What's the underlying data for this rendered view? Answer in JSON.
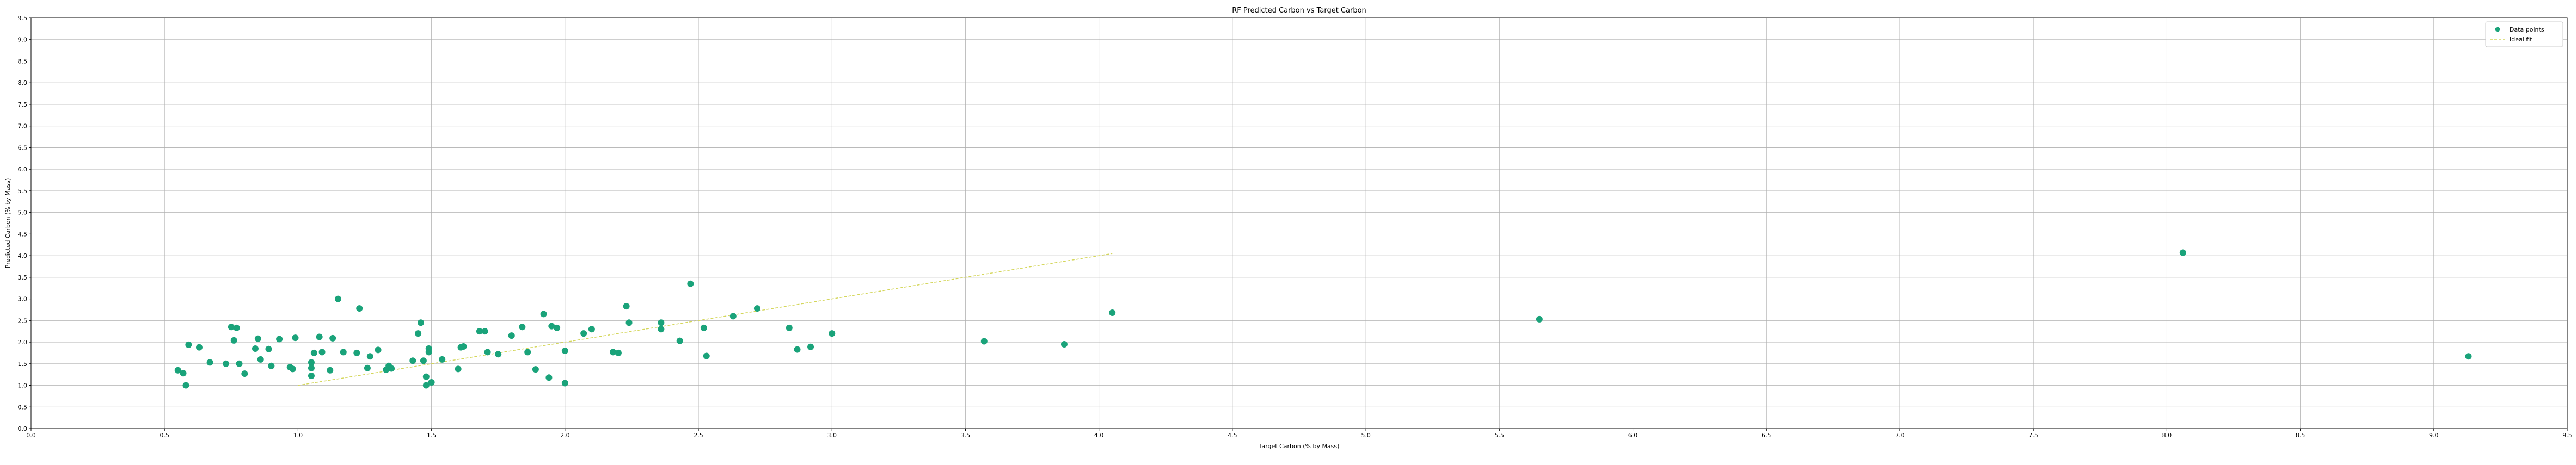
{
  "chart_data": {
    "type": "scatter",
    "title": "RF Predicted Carbon vs Target Carbon",
    "xlabel": "Target Carbon (% by Mass)",
    "ylabel": "Predicted Carbon (% by Mass)",
    "xlim": [
      0.0,
      9.5
    ],
    "ylim": [
      0.0,
      9.5
    ],
    "x_ticks": [
      "0.0",
      "0.5",
      "1.0",
      "1.5",
      "2.0",
      "2.5",
      "3.0",
      "3.5",
      "4.0",
      "4.5",
      "5.0",
      "5.5",
      "6.0",
      "6.5",
      "7.0",
      "7.5",
      "8.0",
      "8.5",
      "9.0",
      "9.5"
    ],
    "y_ticks": [
      "0.0",
      "0.5",
      "1.0",
      "1.5",
      "2.0",
      "2.5",
      "3.0",
      "3.5",
      "4.0",
      "4.5",
      "5.0",
      "5.5",
      "6.0",
      "6.5",
      "7.0",
      "7.5",
      "8.0",
      "8.5",
      "9.0",
      "9.5"
    ],
    "grid": true,
    "legend_position": "top-right",
    "colors": {
      "points": "#1aa37a",
      "ideal_fit": "#d4d65a"
    },
    "series": [
      {
        "name": "Data points",
        "kind": "scatter",
        "points": [
          [
            0.55,
            1.35
          ],
          [
            0.57,
            1.28
          ],
          [
            0.58,
            1.0
          ],
          [
            0.59,
            1.94
          ],
          [
            0.63,
            1.88
          ],
          [
            0.67,
            1.53
          ],
          [
            0.73,
            1.5
          ],
          [
            0.75,
            2.35
          ],
          [
            0.76,
            2.04
          ],
          [
            0.77,
            2.33
          ],
          [
            0.78,
            1.5
          ],
          [
            0.8,
            1.27
          ],
          [
            0.84,
            1.85
          ],
          [
            0.85,
            2.08
          ],
          [
            0.86,
            1.6
          ],
          [
            0.89,
            1.84
          ],
          [
            0.9,
            1.45
          ],
          [
            0.93,
            2.07
          ],
          [
            0.97,
            1.42
          ],
          [
            0.98,
            1.38
          ],
          [
            0.99,
            2.1
          ],
          [
            1.05,
            1.4
          ],
          [
            1.05,
            1.53
          ],
          [
            1.05,
            1.22
          ],
          [
            1.06,
            1.75
          ],
          [
            1.08,
            2.12
          ],
          [
            1.09,
            1.77
          ],
          [
            1.12,
            1.35
          ],
          [
            1.13,
            2.09
          ],
          [
            1.15,
            3.0
          ],
          [
            1.17,
            1.77
          ],
          [
            1.22,
            1.75
          ],
          [
            1.23,
            2.78
          ],
          [
            1.26,
            1.4
          ],
          [
            1.27,
            1.67
          ],
          [
            1.3,
            1.82
          ],
          [
            1.33,
            1.36
          ],
          [
            1.34,
            1.45
          ],
          [
            1.35,
            1.39
          ],
          [
            1.43,
            1.57
          ],
          [
            1.45,
            2.2
          ],
          [
            1.46,
            2.45
          ],
          [
            1.47,
            1.57
          ],
          [
            1.48,
            1.0
          ],
          [
            1.48,
            1.2
          ],
          [
            1.49,
            1.85
          ],
          [
            1.49,
            1.77
          ],
          [
            1.5,
            1.07
          ],
          [
            1.54,
            1.6
          ],
          [
            1.6,
            1.38
          ],
          [
            1.61,
            1.88
          ],
          [
            1.62,
            1.9
          ],
          [
            1.68,
            2.25
          ],
          [
            1.7,
            2.25
          ],
          [
            1.71,
            1.77
          ],
          [
            1.75,
            1.72
          ],
          [
            1.8,
            2.15
          ],
          [
            1.84,
            2.35
          ],
          [
            1.86,
            1.77
          ],
          [
            1.89,
            1.37
          ],
          [
            1.92,
            2.65
          ],
          [
            1.94,
            1.18
          ],
          [
            1.95,
            2.37
          ],
          [
            1.97,
            2.33
          ],
          [
            2.0,
            1.05
          ],
          [
            2.0,
            1.8
          ],
          [
            2.07,
            2.2
          ],
          [
            2.1,
            2.3
          ],
          [
            2.18,
            1.77
          ],
          [
            2.2,
            1.75
          ],
          [
            2.23,
            2.83
          ],
          [
            2.24,
            2.45
          ],
          [
            2.36,
            2.3
          ],
          [
            2.36,
            2.45
          ],
          [
            2.43,
            2.03
          ],
          [
            2.47,
            3.35
          ],
          [
            2.52,
            2.33
          ],
          [
            2.53,
            1.68
          ],
          [
            2.63,
            2.6
          ],
          [
            2.72,
            2.78
          ],
          [
            2.84,
            2.33
          ],
          [
            2.87,
            1.83
          ],
          [
            2.92,
            1.89
          ],
          [
            3.0,
            2.2
          ],
          [
            3.57,
            2.02
          ],
          [
            3.87,
            1.95
          ],
          [
            4.05,
            2.68
          ],
          [
            5.65,
            2.53
          ],
          [
            8.06,
            4.07
          ],
          [
            9.13,
            1.67
          ]
        ]
      },
      {
        "name": "Ideal fit",
        "kind": "line",
        "points": [
          [
            1.0,
            1.0
          ],
          [
            4.05,
            4.05
          ]
        ]
      }
    ]
  }
}
